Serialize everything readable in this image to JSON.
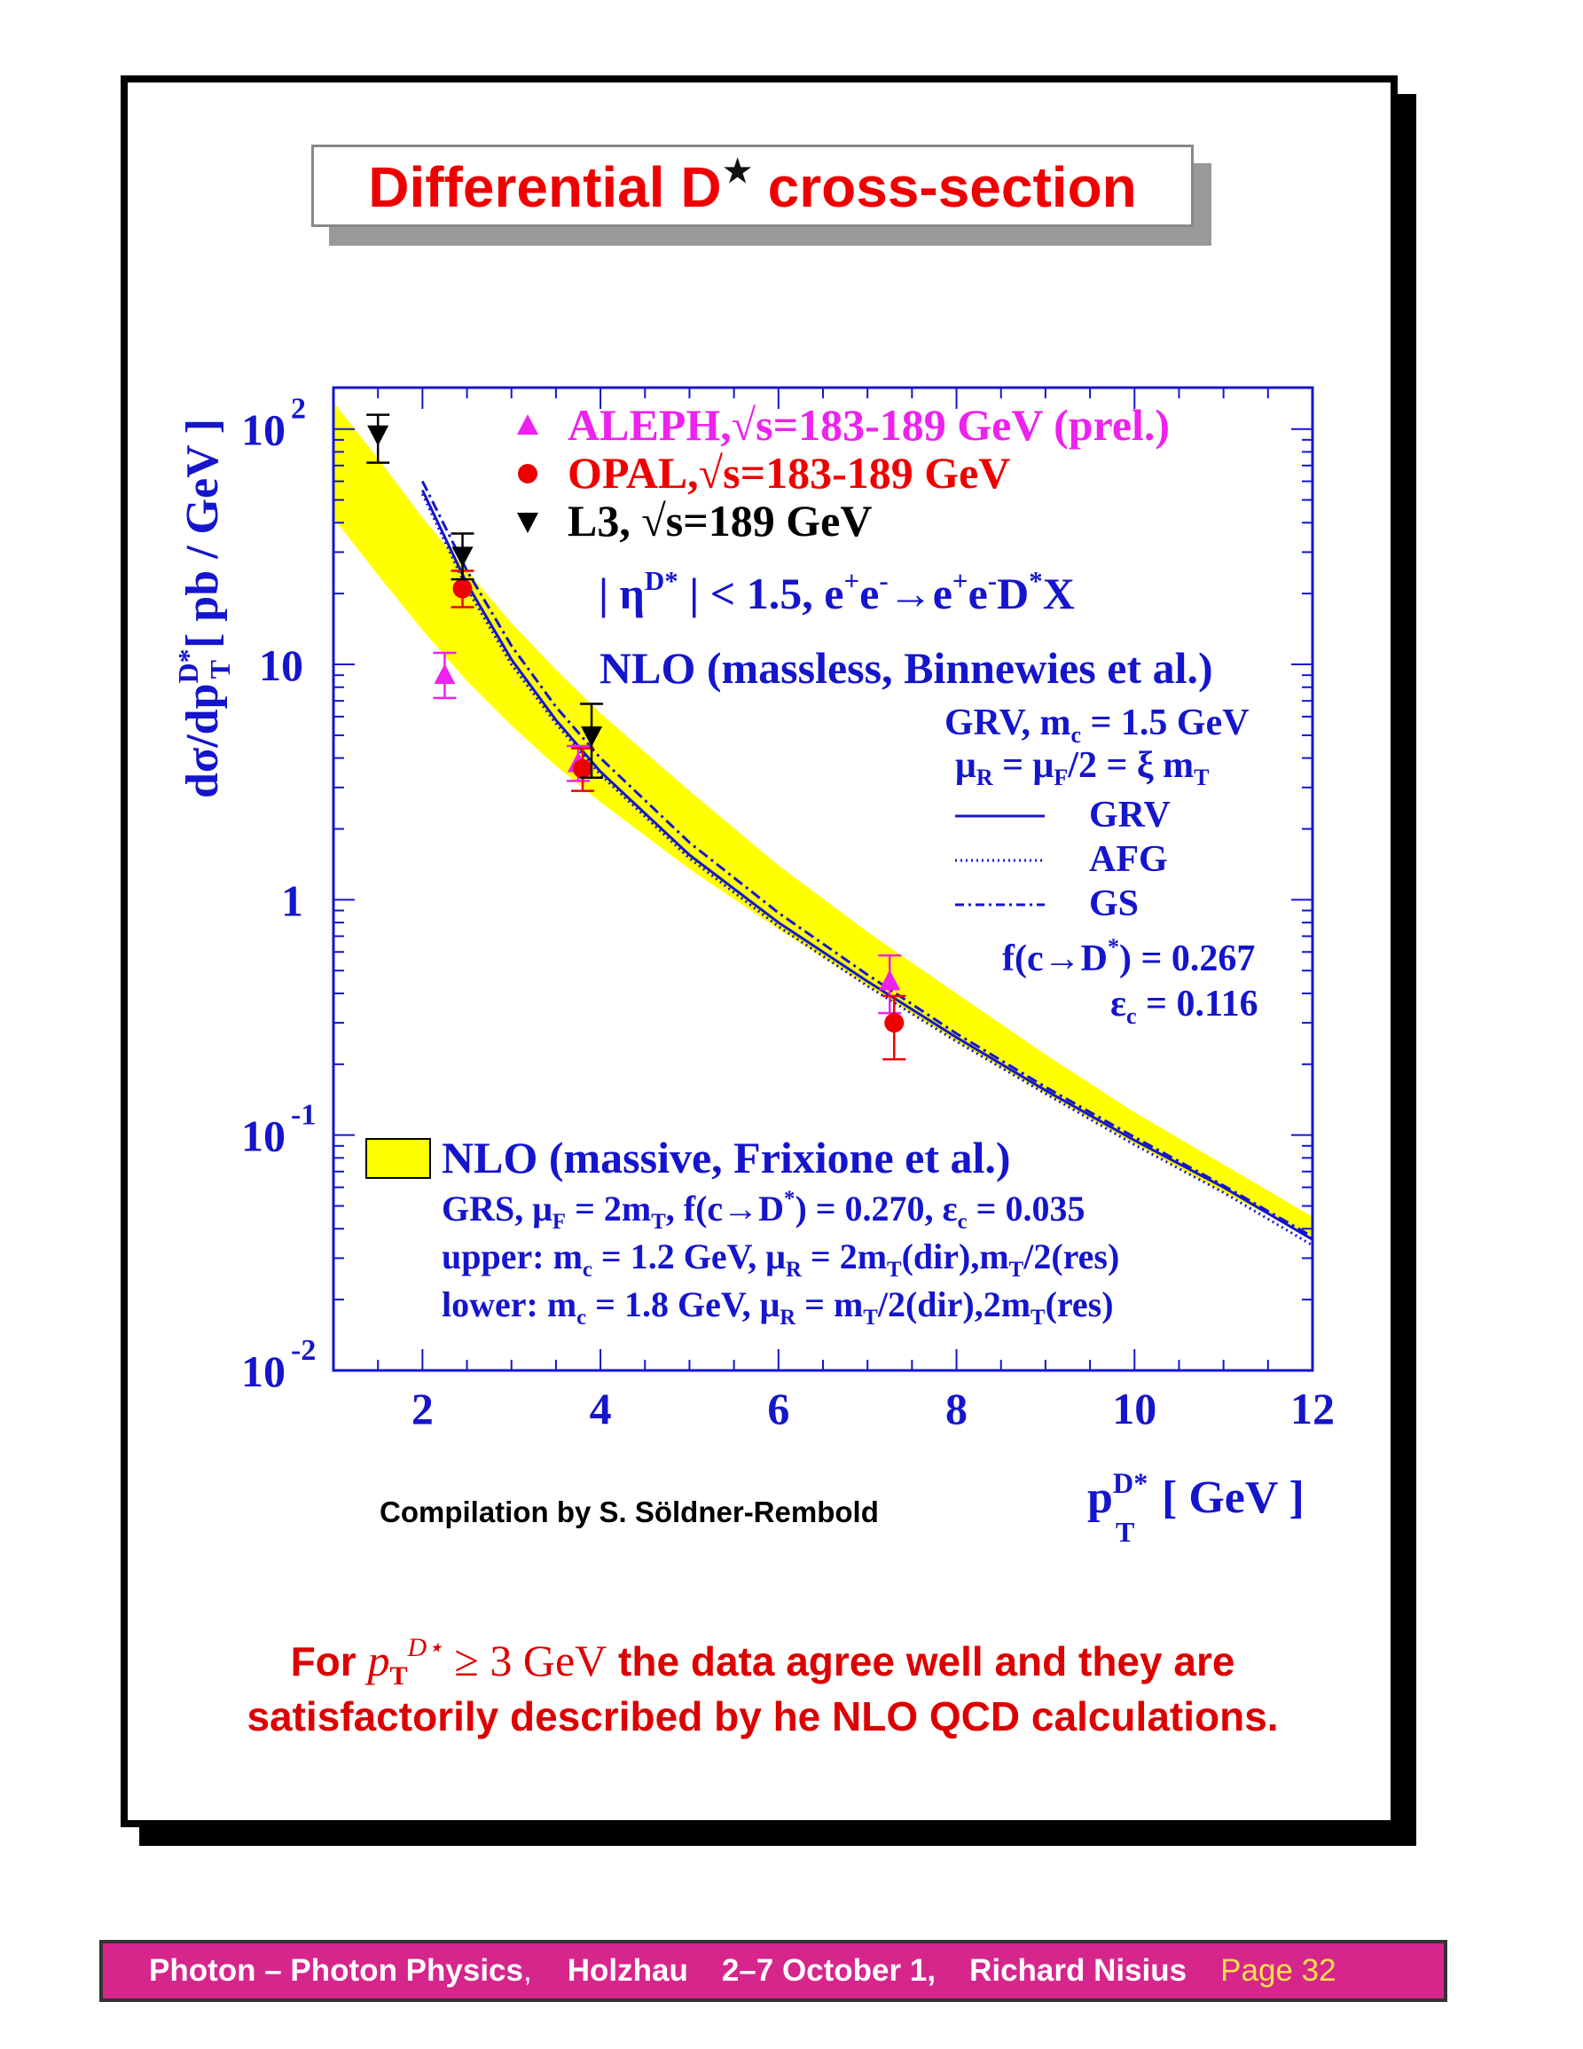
{
  "title": {
    "main": "Differential D",
    "star": "★",
    "rest": " cross-section"
  },
  "compilation": "Compilation by S. Söldner-Rembold",
  "conclusion": {
    "for": "For ",
    "p": "p",
    "sub_T": "T",
    "sup_D": "D⋆",
    "ge": " ≥ 3 GeV",
    "line1_rest": " the data agree well and they are",
    "line2": "satisfactorily described by he NLO QCD calculations."
  },
  "footer": {
    "part1": "Photon – Photon Physics",
    "comma": ",",
    "part2": "Holzhau",
    "part3": "2–7 October 1,",
    "part4": "Richard Nisius",
    "page": "Page 32"
  },
  "chart_data": {
    "type": "scatter",
    "xlim": [
      1,
      12
    ],
    "ylim": [
      0.01,
      150
    ],
    "yscale": "log",
    "x_ticks": [
      "2",
      "4",
      "6",
      "8",
      "10",
      "12"
    ],
    "y_ticks": [
      {
        "base": "10",
        "exp": "2",
        "value": 100
      },
      {
        "base": "10",
        "exp": "",
        "value": 10
      },
      {
        "base": "1",
        "exp": "",
        "value": 1
      },
      {
        "base": "10",
        "exp": "-1",
        "value": 0.1
      },
      {
        "base": "10",
        "exp": "-2",
        "value": 0.01
      }
    ],
    "xlabel": {
      "p": "p",
      "sup": "D*",
      "sub": "T",
      "unit": "[ GeV ]"
    },
    "ylabel": {
      "main": "dσ/dp",
      "sup": "D*",
      "sub": "T",
      "unit": "[ pb / GeV ]"
    },
    "legend_data": [
      {
        "name": "ALEPH,√s=183-189 GeV (prel.)",
        "color": "#ee22ee",
        "marker": "triangle-up"
      },
      {
        "name": "OPAL,√s=183-189 GeV",
        "color": "#ee0000",
        "marker": "circle"
      },
      {
        "name": "L3, √s=189 GeV",
        "color": "#000000",
        "marker": "triangle-down"
      }
    ],
    "cut_text": {
      "a": "| η",
      "a_sup": "D*",
      "b": " | < 1.5, e",
      "c": "e",
      "d": "→e",
      "e": "e",
      "f": "D",
      "g": "X"
    },
    "nlo_massless": {
      "title": "NLO (massless, Binnewies et al.)",
      "grv_line": "GRV, m",
      "grv_sub": "c",
      "grv_val": " = 1.5 GeV",
      "mu_line": "μ",
      "mu_sub": "R",
      "mu_mid": " = μ",
      "mu_sub2": "F",
      "mu_end": "/2 = ξ m",
      "mu_sub3": "T",
      "curves": [
        {
          "name": "GRV",
          "style": "solid"
        },
        {
          "name": "AFG",
          "style": "dotted"
        },
        {
          "name": "GS",
          "style": "dashdot"
        }
      ],
      "frag": "f(c→D",
      "frag_sup": "*",
      "frag_val": ") = 0.267",
      "eps": "ε",
      "eps_sub": "c",
      "eps_val": " = 0.116"
    },
    "nlo_massive": {
      "title": "NLO (massive, Frixione et al.)",
      "color": "#ffff00",
      "line1": "GRS, μ",
      "line1_sub": "F",
      "line1_b": " = 2m",
      "line1_sub2": "T",
      "line1_c": ", f(c→D",
      "line1_sup": "*",
      "line1_d": ") = 0.270, ε",
      "line1_sub3": "c",
      "line1_e": " = 0.035",
      "line2": "upper: m",
      "line2_sub": "c",
      "line2_b": " = 1.2 GeV,  μ",
      "line2_sub2": "R",
      "line2_c": " = 2m",
      "line2_sub3": "T",
      "line2_d": "(dir),m",
      "line2_sub4": "T",
      "line2_e": "/2(res)",
      "line3": "lower: m",
      "line3_sub": "c",
      "line3_b": " = 1.8 GeV,  μ",
      "line3_sub2": "R",
      "line3_c": " = m",
      "line3_sub3": "T",
      "line3_d": "/2(dir),2m",
      "line3_sub4": "T",
      "line3_e": "(res)"
    },
    "series": [
      {
        "name": "ALEPH,√s=183-189 GeV (prel.)",
        "marker": "triangle-up",
        "color": "#ee22ee",
        "points": [
          {
            "x": 2.25,
            "y": 9.0,
            "lo": 7.2,
            "hi": 11.2
          },
          {
            "x": 3.75,
            "y": 3.8,
            "lo": 3.2,
            "hi": 4.5
          },
          {
            "x": 7.25,
            "y": 0.45,
            "lo": 0.33,
            "hi": 0.58
          }
        ]
      },
      {
        "name": "OPAL,√s=183-189 GeV",
        "marker": "circle",
        "color": "#ee0000",
        "points": [
          {
            "x": 2.45,
            "y": 21,
            "lo": 17.5,
            "hi": 25
          },
          {
            "x": 3.8,
            "y": 3.6,
            "lo": 2.9,
            "hi": 4.4
          },
          {
            "x": 7.3,
            "y": 0.3,
            "lo": 0.21,
            "hi": 0.39
          }
        ]
      },
      {
        "name": "L3, √s=189 GeV",
        "marker": "triangle-down",
        "color": "#000000",
        "points": [
          {
            "x": 1.5,
            "y": 95,
            "lo": 72,
            "hi": 115
          },
          {
            "x": 2.45,
            "y": 29,
            "lo": 23,
            "hi": 36
          },
          {
            "x": 3.9,
            "y": 5.0,
            "lo": 3.3,
            "hi": 6.8
          }
        ]
      }
    ],
    "band": {
      "x": [
        1.0,
        1.5,
        2.0,
        2.5,
        3.0,
        3.5,
        4.0,
        5.0,
        6.0,
        7.0,
        8.0,
        9.0,
        10.0,
        11.0,
        12.0
      ],
      "upper": [
        130,
        75,
        42,
        25,
        15,
        9.5,
        6.2,
        2.9,
        1.4,
        0.73,
        0.4,
        0.22,
        0.125,
        0.075,
        0.045
      ],
      "lower": [
        42,
        24,
        14,
        8.5,
        5.5,
        3.7,
        2.6,
        1.35,
        0.75,
        0.43,
        0.25,
        0.15,
        0.092,
        0.057,
        0.037
      ]
    },
    "curves": [
      {
        "name": "GRV",
        "style": "solid",
        "x": [
          2.0,
          2.5,
          3.0,
          3.5,
          4.0,
          5.0,
          6.0,
          7.0,
          8.0,
          9.0,
          10.0,
          11.0,
          12.0
        ],
        "y": [
          55,
          22,
          10.5,
          5.8,
          3.5,
          1.55,
          0.8,
          0.45,
          0.26,
          0.155,
          0.095,
          0.06,
          0.036
        ]
      },
      {
        "name": "AFG",
        "style": "dotted",
        "x": [
          2.0,
          2.5,
          3.0,
          3.5,
          4.0,
          5.0,
          6.0,
          7.0,
          8.0,
          9.0,
          10.0,
          11.0,
          12.0
        ],
        "y": [
          53,
          21,
          10,
          5.6,
          3.4,
          1.5,
          0.77,
          0.43,
          0.25,
          0.15,
          0.091,
          0.057,
          0.034
        ]
      },
      {
        "name": "GS",
        "style": "dashdot",
        "x": [
          2.0,
          2.5,
          3.0,
          3.5,
          4.0,
          5.0,
          6.0,
          7.0,
          8.0,
          9.0,
          10.0,
          11.0,
          12.0
        ],
        "y": [
          60,
          25,
          12,
          6.6,
          4.0,
          1.75,
          0.88,
          0.48,
          0.27,
          0.16,
          0.098,
          0.061,
          0.037
        ]
      }
    ]
  }
}
